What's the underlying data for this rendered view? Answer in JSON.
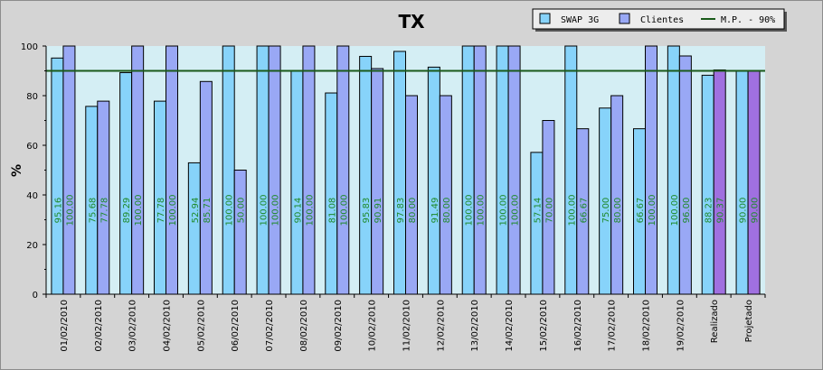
{
  "chart_data": {
    "type": "bar",
    "title": "TX",
    "ylabel": "%",
    "xlabel": "",
    "ylim": [
      0,
      100
    ],
    "yticks": [
      0,
      20,
      40,
      60,
      80,
      100
    ],
    "grid": false,
    "legend_position": "top-right",
    "categories": [
      "01/02/2010",
      "02/02/2010",
      "03/02/2010",
      "04/02/2010",
      "05/02/2010",
      "06/02/2010",
      "07/02/2010",
      "08/02/2010",
      "09/02/2010",
      "10/02/2010",
      "11/02/2010",
      "12/02/2010",
      "13/02/2010",
      "14/02/2010",
      "15/02/2010",
      "16/02/2010",
      "17/02/2010",
      "18/02/2010",
      "19/02/2010",
      "Realizado",
      "Projetado"
    ],
    "series": [
      {
        "name": "SWAP 3G",
        "color": "#87d3fa",
        "values": [
          95.16,
          75.68,
          89.29,
          77.78,
          52.94,
          100.0,
          100.0,
          90.14,
          81.08,
          95.83,
          97.83,
          91.49,
          100.0,
          100.0,
          57.14,
          100.0,
          75.0,
          66.67,
          100.0,
          88.23,
          90.0
        ],
        "labels": [
          "95.16",
          "75.68",
          "89.29",
          "77.78",
          "52.94",
          "100.00",
          "100.00",
          "90.14",
          "81.08",
          "95.83",
          "97.83",
          "91.49",
          "100.00",
          "100.00",
          "57.14",
          "100.00",
          "75.00",
          "66.67",
          "100.00",
          "88.23",
          "90.00"
        ]
      },
      {
        "name": "Clientes",
        "color": "#99a8f5",
        "highlight_color": "#a070e0",
        "highlight_from_index": 19,
        "values": [
          100.0,
          77.78,
          100.0,
          100.0,
          85.71,
          50.0,
          100.0,
          100.0,
          100.0,
          90.91,
          80.0,
          80.0,
          100.0,
          100.0,
          70.0,
          66.67,
          80.0,
          100.0,
          96.0,
          90.37,
          90.0
        ],
        "labels": [
          "100.00",
          "77.78",
          "100.00",
          "100.00",
          "85.71",
          "50.00",
          "100.00",
          "100.00",
          "100.00",
          "90.91",
          "80.00",
          "80.00",
          "100.00",
          "100.00",
          "70.00",
          "66.67",
          "80.00",
          "100.00",
          "96.00",
          "90.37",
          "90.00"
        ]
      }
    ],
    "reference_line": {
      "name": "M.P. - 90%",
      "value": 90,
      "color": "#1a5a1a"
    },
    "plot_background": "#d4eef4"
  }
}
